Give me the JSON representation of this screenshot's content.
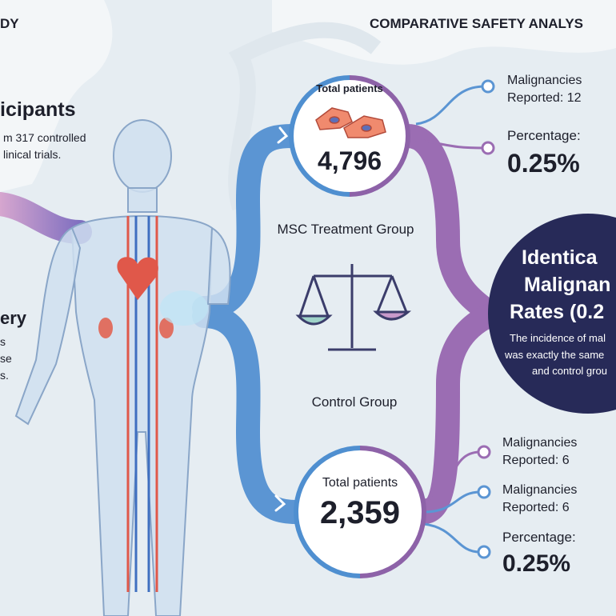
{
  "header": {
    "left_title": "DY",
    "title": "COMPARATIVE SAFETY ANALYS"
  },
  "left_panel": {
    "heading": "icipants",
    "lines": [
      "m 317 controlled",
      "linical trials."
    ],
    "heading2": "ery",
    "lines2": [
      "s",
      "se",
      "s."
    ]
  },
  "treatment": {
    "label": "MSC Treatment Group",
    "total_label": "Total patients",
    "total": "4,796",
    "details": [
      [
        "Malignancies",
        "Reported: 12"
      ],
      [
        "Percentage:",
        "0.25%"
      ]
    ]
  },
  "control": {
    "label": "Control Group",
    "total_label": "Total patients",
    "total": "2,359",
    "details": [
      [
        "Malignancies",
        "Reported: 6"
      ],
      [
        "Malignancies",
        "Reported: 6"
      ],
      [
        "Percentage:",
        "0.25%"
      ]
    ]
  },
  "conclusion": {
    "heading": [
      "Identica",
      "Malignan",
      "Rates (0.2"
    ],
    "body": [
      "The incidence of mal",
      "was exactly the same",
      "and control grou"
    ]
  }
}
